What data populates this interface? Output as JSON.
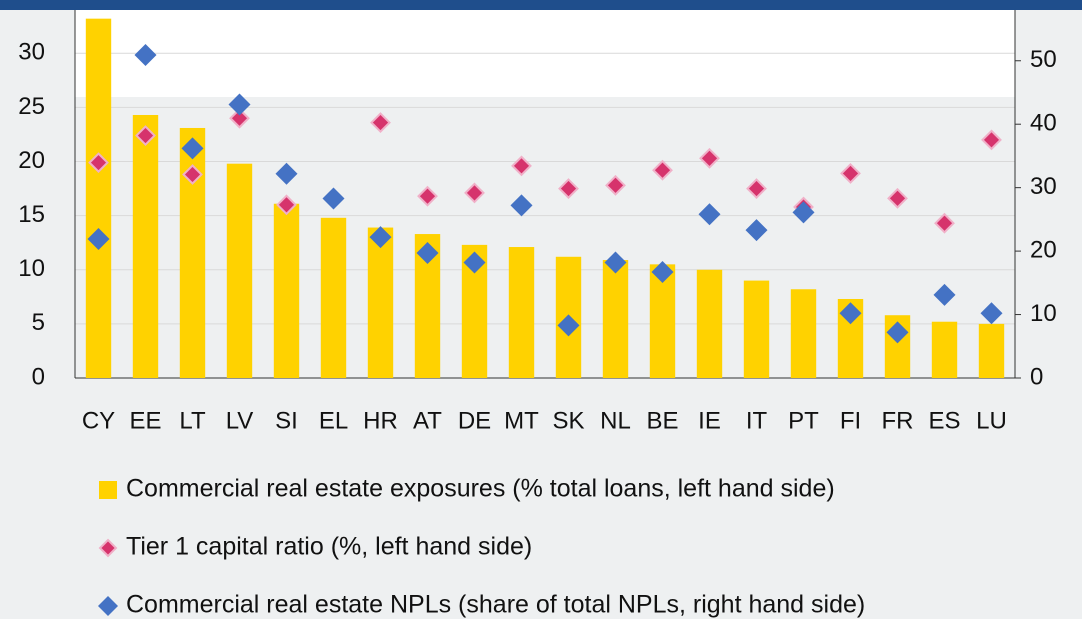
{
  "chart_data": {
    "type": "bar",
    "categories": [
      "CY",
      "EE",
      "LT",
      "LV",
      "SI",
      "EL",
      "HR",
      "AT",
      "DE",
      "MT",
      "SK",
      "NL",
      "BE",
      "IE",
      "IT",
      "PT",
      "FI",
      "FR",
      "ES",
      "LU"
    ],
    "series": [
      {
        "name": "Commercial real estate exposures (% total loans, left hand side)",
        "color": "#ffd200",
        "type": "bar",
        "values": [
          33.2,
          24.3,
          23.1,
          19.8,
          16.1,
          14.8,
          13.9,
          13.3,
          12.3,
          12.1,
          11.2,
          10.9,
          10.5,
          10.0,
          9.0,
          8.2,
          7.3,
          5.8,
          5.2,
          5.0
        ]
      },
      {
        "name": "Tier 1 capital ratio (%, left hand side)",
        "color": "#d6336c",
        "type": "scatter",
        "values": [
          19.9,
          22.4,
          18.8,
          24.0,
          16.0,
          null,
          23.6,
          16.8,
          17.1,
          19.6,
          17.5,
          17.8,
          19.2,
          20.3,
          17.5,
          15.8,
          18.9,
          16.6,
          14.3,
          22.0
        ]
      },
      {
        "name": "Commercial real estate NPLs (share of total NPLs, right hand side)",
        "color": "#4472c4",
        "type": "scatter",
        "axis": "y2",
        "values": [
          21.9,
          50.9,
          36.2,
          43.1,
          32.2,
          28.3,
          22.2,
          19.7,
          18.2,
          27.2,
          8.3,
          18.2,
          16.7,
          25.8,
          23.3,
          26.1,
          10.2,
          7.2,
          13.1,
          10.2
        ]
      }
    ],
    "ylim": [
      0,
      34
    ],
    "yticks": [
      0,
      5,
      10,
      15,
      20,
      25,
      30
    ],
    "y2lim": [
      0,
      58
    ],
    "y2ticks": [
      0,
      10,
      20,
      30,
      40,
      50
    ]
  }
}
